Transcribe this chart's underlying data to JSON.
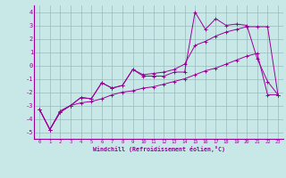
{
  "xlabel": "Windchill (Refroidissement éolien,°C)",
  "bg_color": "#c8e8e8",
  "line_color": "#990099",
  "grid_color": "#99bbbb",
  "x_values": [
    0,
    1,
    2,
    3,
    4,
    5,
    6,
    7,
    8,
    9,
    10,
    11,
    12,
    13,
    14,
    15,
    16,
    17,
    18,
    19,
    20,
    21,
    22,
    23
  ],
  "line1": [
    -3.3,
    -4.8,
    -3.5,
    -3.0,
    -2.4,
    -2.5,
    -1.3,
    -1.7,
    -1.5,
    -0.3,
    -0.8,
    -0.8,
    -0.8,
    -0.5,
    -0.5,
    4.0,
    2.7,
    3.5,
    3.0,
    3.1,
    3.0,
    0.5,
    -1.2,
    -2.2
  ],
  "line2": [
    -3.3,
    -4.8,
    -3.5,
    -3.0,
    -2.4,
    -2.5,
    -1.3,
    -1.7,
    -1.5,
    -0.3,
    -0.7,
    -0.6,
    -0.5,
    -0.3,
    0.1,
    1.5,
    1.8,
    2.2,
    2.5,
    2.7,
    2.9,
    2.9,
    2.9,
    -2.2
  ],
  "line3": [
    -3.3,
    -4.8,
    -3.4,
    -3.0,
    -2.8,
    -2.7,
    -2.5,
    -2.2,
    -2.0,
    -1.9,
    -1.7,
    -1.6,
    -1.4,
    -1.2,
    -1.0,
    -0.7,
    -0.4,
    -0.2,
    0.1,
    0.4,
    0.7,
    0.9,
    -2.2,
    -2.2
  ],
  "ylim": [
    -5.5,
    4.5
  ],
  "xlim": [
    -0.5,
    23.5
  ],
  "yticks": [
    -5,
    -4,
    -3,
    -2,
    -1,
    0,
    1,
    2,
    3,
    4
  ],
  "xticks": [
    0,
    1,
    2,
    3,
    4,
    5,
    6,
    7,
    8,
    9,
    10,
    11,
    12,
    13,
    14,
    15,
    16,
    17,
    18,
    19,
    20,
    21,
    22,
    23
  ]
}
